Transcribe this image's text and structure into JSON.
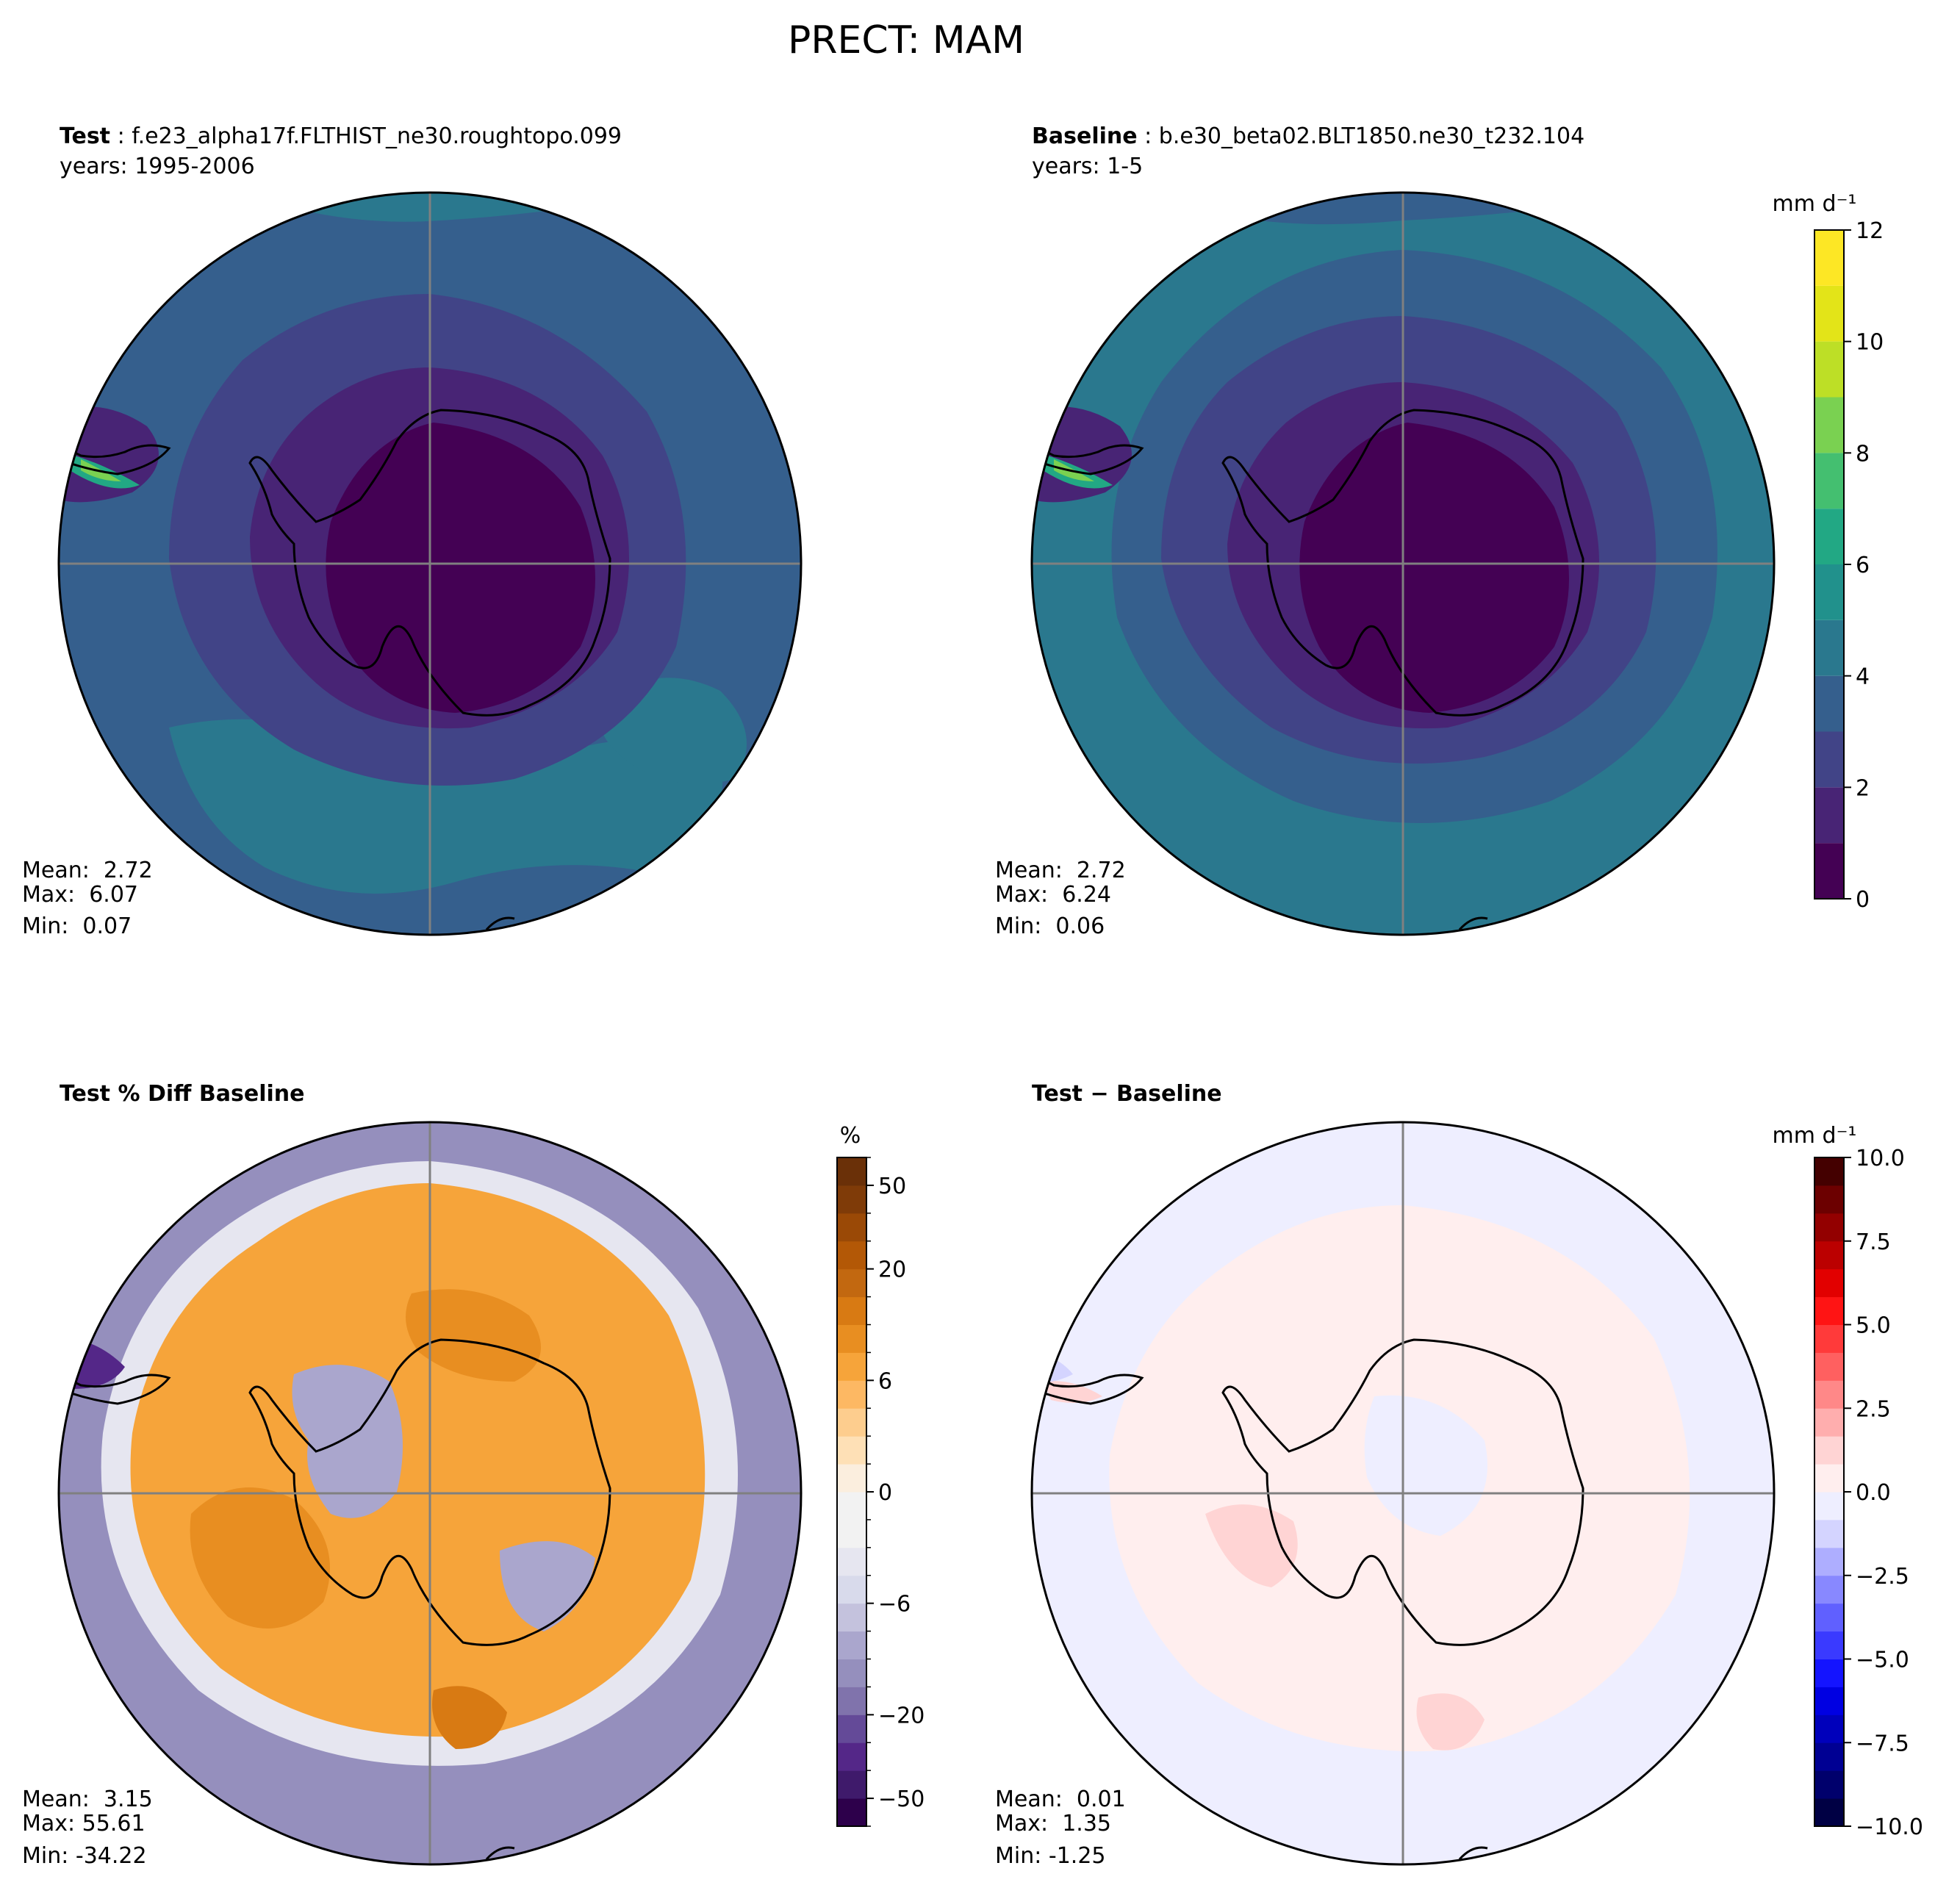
{
  "suptitle": "PRECT: MAM",
  "panels": {
    "test": {
      "title_bold": "Test",
      "title_sep": " : ",
      "title_case": "f.e23_alpha17f.FLTHIST_ne30.roughtopo.099",
      "years": "years: 1995-2006",
      "stats": {
        "mean": "Mean:  2.72",
        "max": "Max:  6.07",
        "min": "Min:  0.07"
      }
    },
    "baseline": {
      "title_bold": "Baseline",
      "title_sep": " : ",
      "title_case": "b.e30_beta02.BLT1850.ne30_t232.104",
      "years": "years: 1-5",
      "stats": {
        "mean": "Mean:  2.72",
        "max": "Max:  6.24",
        "min": "Min:  0.06"
      }
    },
    "pctdiff": {
      "title_bold": "Test % Diff Baseline",
      "stats": {
        "mean": "Mean:  3.15",
        "max": "Max: 55.61",
        "min": "Min: -34.22"
      }
    },
    "diff": {
      "title_bold": "Test − Baseline",
      "stats": {
        "mean": "Mean:  0.01",
        "max": "Max:  1.35",
        "min": "Min: -1.25"
      }
    }
  },
  "chart_data": [
    {
      "type": "heatmap",
      "projection": "south-polar-stereographic",
      "title": "Test : f.e23_alpha17f.FLTHIST_ne30.roughtopo.099",
      "colormap": "viridis",
      "colorbar": "shared-with-baseline",
      "stats": {
        "mean": 2.72,
        "max": 6.07,
        "min": 0.07
      }
    },
    {
      "type": "heatmap",
      "projection": "south-polar-stereographic",
      "title": "Baseline : b.e30_beta02.BLT1850.ne30_t232.104",
      "colormap": "viridis",
      "colorbar": {
        "label": "mm d⁻¹",
        "ticks": [
          "0",
          "2",
          "4",
          "6",
          "8",
          "10",
          "12"
        ],
        "levels": [
          0,
          1,
          2,
          3,
          4,
          5,
          6,
          7,
          8,
          9,
          10,
          11,
          12
        ],
        "colors": [
          "#440154",
          "#482475",
          "#414487",
          "#355f8d",
          "#2a788e",
          "#21918c",
          "#22a884",
          "#44bf70",
          "#7ad151",
          "#bddf26",
          "#e3e418",
          "#fde725"
        ]
      },
      "stats": {
        "mean": 2.72,
        "max": 6.24,
        "min": 0.06
      }
    },
    {
      "type": "heatmap",
      "projection": "south-polar-stereographic",
      "title": "Test % Diff Baseline",
      "colormap": "PuOr_r",
      "colorbar": {
        "label": "%",
        "ticks": [
          "−50",
          "−20",
          "−6",
          "0",
          "6",
          "20",
          "50"
        ],
        "levels": [
          -75,
          -50,
          -40,
          -30,
          -20,
          -15,
          -10,
          -8,
          -6,
          -4,
          -2,
          -1,
          0,
          1,
          2,
          4,
          6,
          8,
          10,
          15,
          20,
          30,
          40,
          50,
          75
        ],
        "colors": [
          "#2d004b",
          "#3f1a6b",
          "#542788",
          "#644a98",
          "#8073ac",
          "#958fbd",
          "#aaa6cd",
          "#c4c2dd",
          "#d8daeb",
          "#e6e6f0",
          "#f2f2f2",
          "#f2f2f2",
          "#fbeede",
          "#fee0b6",
          "#fdcd8e",
          "#fdb863",
          "#f6a43a",
          "#e88e21",
          "#d87a13",
          "#c26810",
          "#b35806",
          "#9a4906",
          "#7f3b08",
          "#6a3008"
        ]
      },
      "stats": {
        "mean": 3.15,
        "max": 55.61,
        "min": -34.22
      }
    },
    {
      "type": "heatmap",
      "projection": "south-polar-stereographic",
      "title": "Test − Baseline",
      "colormap": "seismic",
      "colorbar": {
        "label": "mm d⁻¹",
        "ticks": [
          "−10.0",
          "−7.5",
          "−5.0",
          "−2.5",
          "0.0",
          "2.5",
          "5.0",
          "7.5",
          "10.0"
        ],
        "range": [
          -10,
          10
        ]
      },
      "stats": {
        "mean": 0.01,
        "max": 1.35,
        "min": -1.25
      }
    }
  ],
  "colors": {
    "viridis": [
      "#440154",
      "#482475",
      "#414487",
      "#355f8d",
      "#2a788e",
      "#21918c",
      "#22a884",
      "#44bf70",
      "#7ad151",
      "#bddf26",
      "#e3e418",
      "#fde725"
    ],
    "puor": [
      "#2d004b",
      "#3f1a6b",
      "#542788",
      "#644a98",
      "#8073ac",
      "#958fbd",
      "#aaa6cd",
      "#c4c2dd",
      "#d8daeb",
      "#e6e6f0",
      "#f2f2f2",
      "#f2f2f2",
      "#fbeede",
      "#fee0b6",
      "#fdcd8e",
      "#fdb863",
      "#f6a43a",
      "#e88e21",
      "#d87a13",
      "#c26810",
      "#b35806",
      "#9a4906",
      "#7f3b08",
      "#6a3008"
    ],
    "seismic_neg": [
      "#000044",
      "#00006c",
      "#000093",
      "#0000bb",
      "#0000e2",
      "#1414ff",
      "#3a3aff",
      "#6060ff",
      "#8888ff",
      "#aeaeff",
      "#d4d4ff",
      "#eeeeff"
    ],
    "seismic_pos": [
      "#ffeeee",
      "#ffd4d4",
      "#ffaeae",
      "#ff8888",
      "#ff6060",
      "#ff3a3a",
      "#ff1414",
      "#e20000",
      "#bb0000",
      "#930000",
      "#6c0000",
      "#440000"
    ]
  }
}
